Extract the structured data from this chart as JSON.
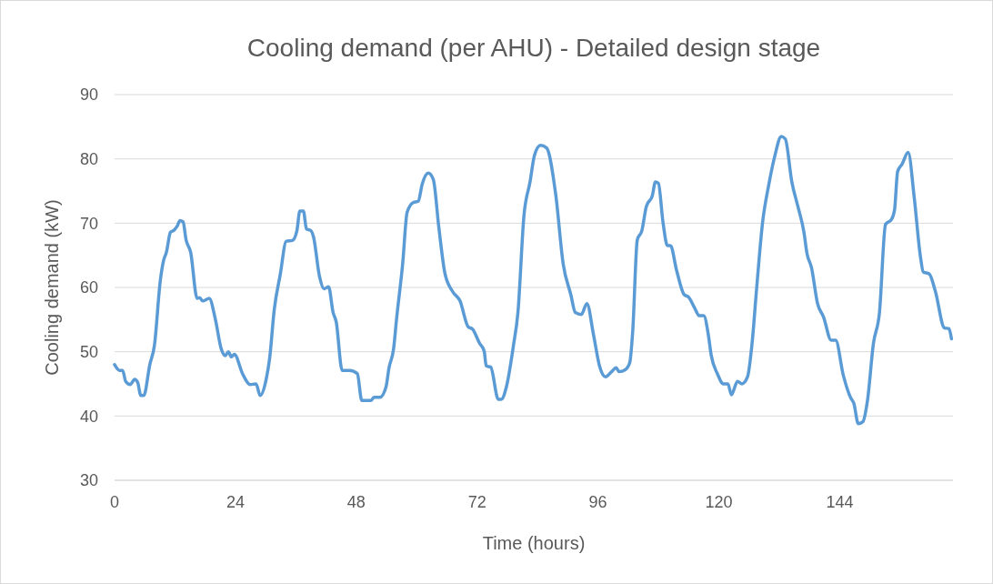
{
  "chart_data": {
    "type": "line",
    "title": "Cooling demand (per AHU) - Detailed design stage",
    "xlabel": "Time (hours)",
    "ylabel": "Cooling demand (kW)",
    "xlim": [
      0,
      166.5
    ],
    "xticks": [
      0,
      24,
      48,
      72,
      96,
      120,
      144
    ],
    "ylim": [
      30,
      90
    ],
    "yticks": [
      30,
      40,
      50,
      60,
      70,
      80,
      90
    ],
    "grid": "y",
    "marker": "none",
    "line_style": "solid",
    "series": [
      {
        "color": "#5b9bd5",
        "x": [
          0,
          1.0,
          1.6,
          2.2,
          3.1,
          4.0,
          4.6,
          5.2,
          5.8,
          7.0,
          7.9,
          9.1,
          9.7,
          10.3,
          11.1,
          11.8,
          12.4,
          13.0,
          13.6,
          14.2,
          15.1,
          16.4,
          16.9,
          17.5,
          18.8,
          20.0,
          21.2,
          22.0,
          22.6,
          23.2,
          23.8,
          25.4,
          26.9,
          28.1,
          28.9,
          30.1,
          30.8,
          31.7,
          32.9,
          34.1,
          35.3,
          36.2,
          36.8,
          37.5,
          38.1,
          38.9,
          39.5,
          40.7,
          41.6,
          42.5,
          43.4,
          44.0,
          45.2,
          45.8,
          46.7,
          48.2,
          49.1,
          50.9,
          51.5,
          52.7,
          53.9,
          54.5,
          55.4,
          56.0,
          57.2,
          58.1,
          59.3,
          60.3,
          61.1,
          62.3,
          63.3,
          64.4,
          65.6,
          67.1,
          68.6,
          70.2,
          71.1,
          72.5,
          73.4,
          73.8,
          74.7,
          76.2,
          76.8,
          77.8,
          79.2,
          80.1,
          81.3,
          82.5,
          83.4,
          84.6,
          85.8,
          87.6,
          89.1,
          90.6,
          91.5,
          92.7,
          93.8,
          95.1,
          96.3,
          97.5,
          98.7,
          99.6,
          100.2,
          101.4,
          102.3,
          102.9,
          103.8,
          104.7,
          105.6,
          106.8,
          107.4,
          108.0,
          108.9,
          109.8,
          110.4,
          111.6,
          113.1,
          114.0,
          115.2,
          116.1,
          117.0,
          117.9,
          118.5,
          119.7,
          120.9,
          121.8,
          122.5,
          123.7,
          124.6,
          125.7,
          126.6,
          127.5,
          128.7,
          129.9,
          131.1,
          132.4,
          133.2,
          134.5,
          135.7,
          136.9,
          137.5,
          138.4,
          139.6,
          140.8,
          142.3,
          143.2,
          144.7,
          146.2,
          146.8,
          147.7,
          148.6,
          149.5,
          150.7,
          151.9,
          153.1,
          154.3,
          154.9,
          155.5,
          156.4,
          157.6,
          158.8,
          160.0,
          160.6,
          161.8,
          163.0,
          164.8,
          165.7,
          166.2
        ],
        "values": [
          48.0,
          47.1,
          47.1,
          45.4,
          44.9,
          45.7,
          45.2,
          43.2,
          43.2,
          48.0,
          50.9,
          61.2,
          64.1,
          65.5,
          68.6,
          68.9,
          69.5,
          70.4,
          70.2,
          67.4,
          65.5,
          58.3,
          58.4,
          57.9,
          58.3,
          55.1,
          50.4,
          49.4,
          50.0,
          49.2,
          49.6,
          46.6,
          44.9,
          45.0,
          43.2,
          45.7,
          49.0,
          56.5,
          62.0,
          67.2,
          67.3,
          68.8,
          71.9,
          71.9,
          69.1,
          68.9,
          67.9,
          61.7,
          59.8,
          60.1,
          56.1,
          54.7,
          47.1,
          47.1,
          47.1,
          46.6,
          42.4,
          42.4,
          42.9,
          42.9,
          44.5,
          47.5,
          50.4,
          55.1,
          63.6,
          71.7,
          73.2,
          73.4,
          76.1,
          77.8,
          76.8,
          69.3,
          62.2,
          59.4,
          57.9,
          53.9,
          53.5,
          51.3,
          50.1,
          47.8,
          47.6,
          42.6,
          42.6,
          44.5,
          50.9,
          56.1,
          71.2,
          76.4,
          80.6,
          82.1,
          81.7,
          74.5,
          63.6,
          58.9,
          56.1,
          55.8,
          57.5,
          52.7,
          47.8,
          46.1,
          46.9,
          47.5,
          46.9,
          47.2,
          48.3,
          53.2,
          67.4,
          68.8,
          72.6,
          74.3,
          76.4,
          76.2,
          70.2,
          66.5,
          66.5,
          62.7,
          58.9,
          58.5,
          56.8,
          55.6,
          55.6,
          52.7,
          49.4,
          46.6,
          45.0,
          45.0,
          43.3,
          45.4,
          45.0,
          46.1,
          51.3,
          59.8,
          70.2,
          75.9,
          80.4,
          83.5,
          83.1,
          76.4,
          72.6,
          68.6,
          65.3,
          63.1,
          57.5,
          55.4,
          51.8,
          51.8,
          46.4,
          42.8,
          42.0,
          38.8,
          39.1,
          42.3,
          51.3,
          56.1,
          69.8,
          70.6,
          72.1,
          78.0,
          79.2,
          81.0,
          74.0,
          65.0,
          62.4,
          62.1,
          59.4,
          53.7,
          53.6,
          52.0
        ]
      }
    ]
  }
}
